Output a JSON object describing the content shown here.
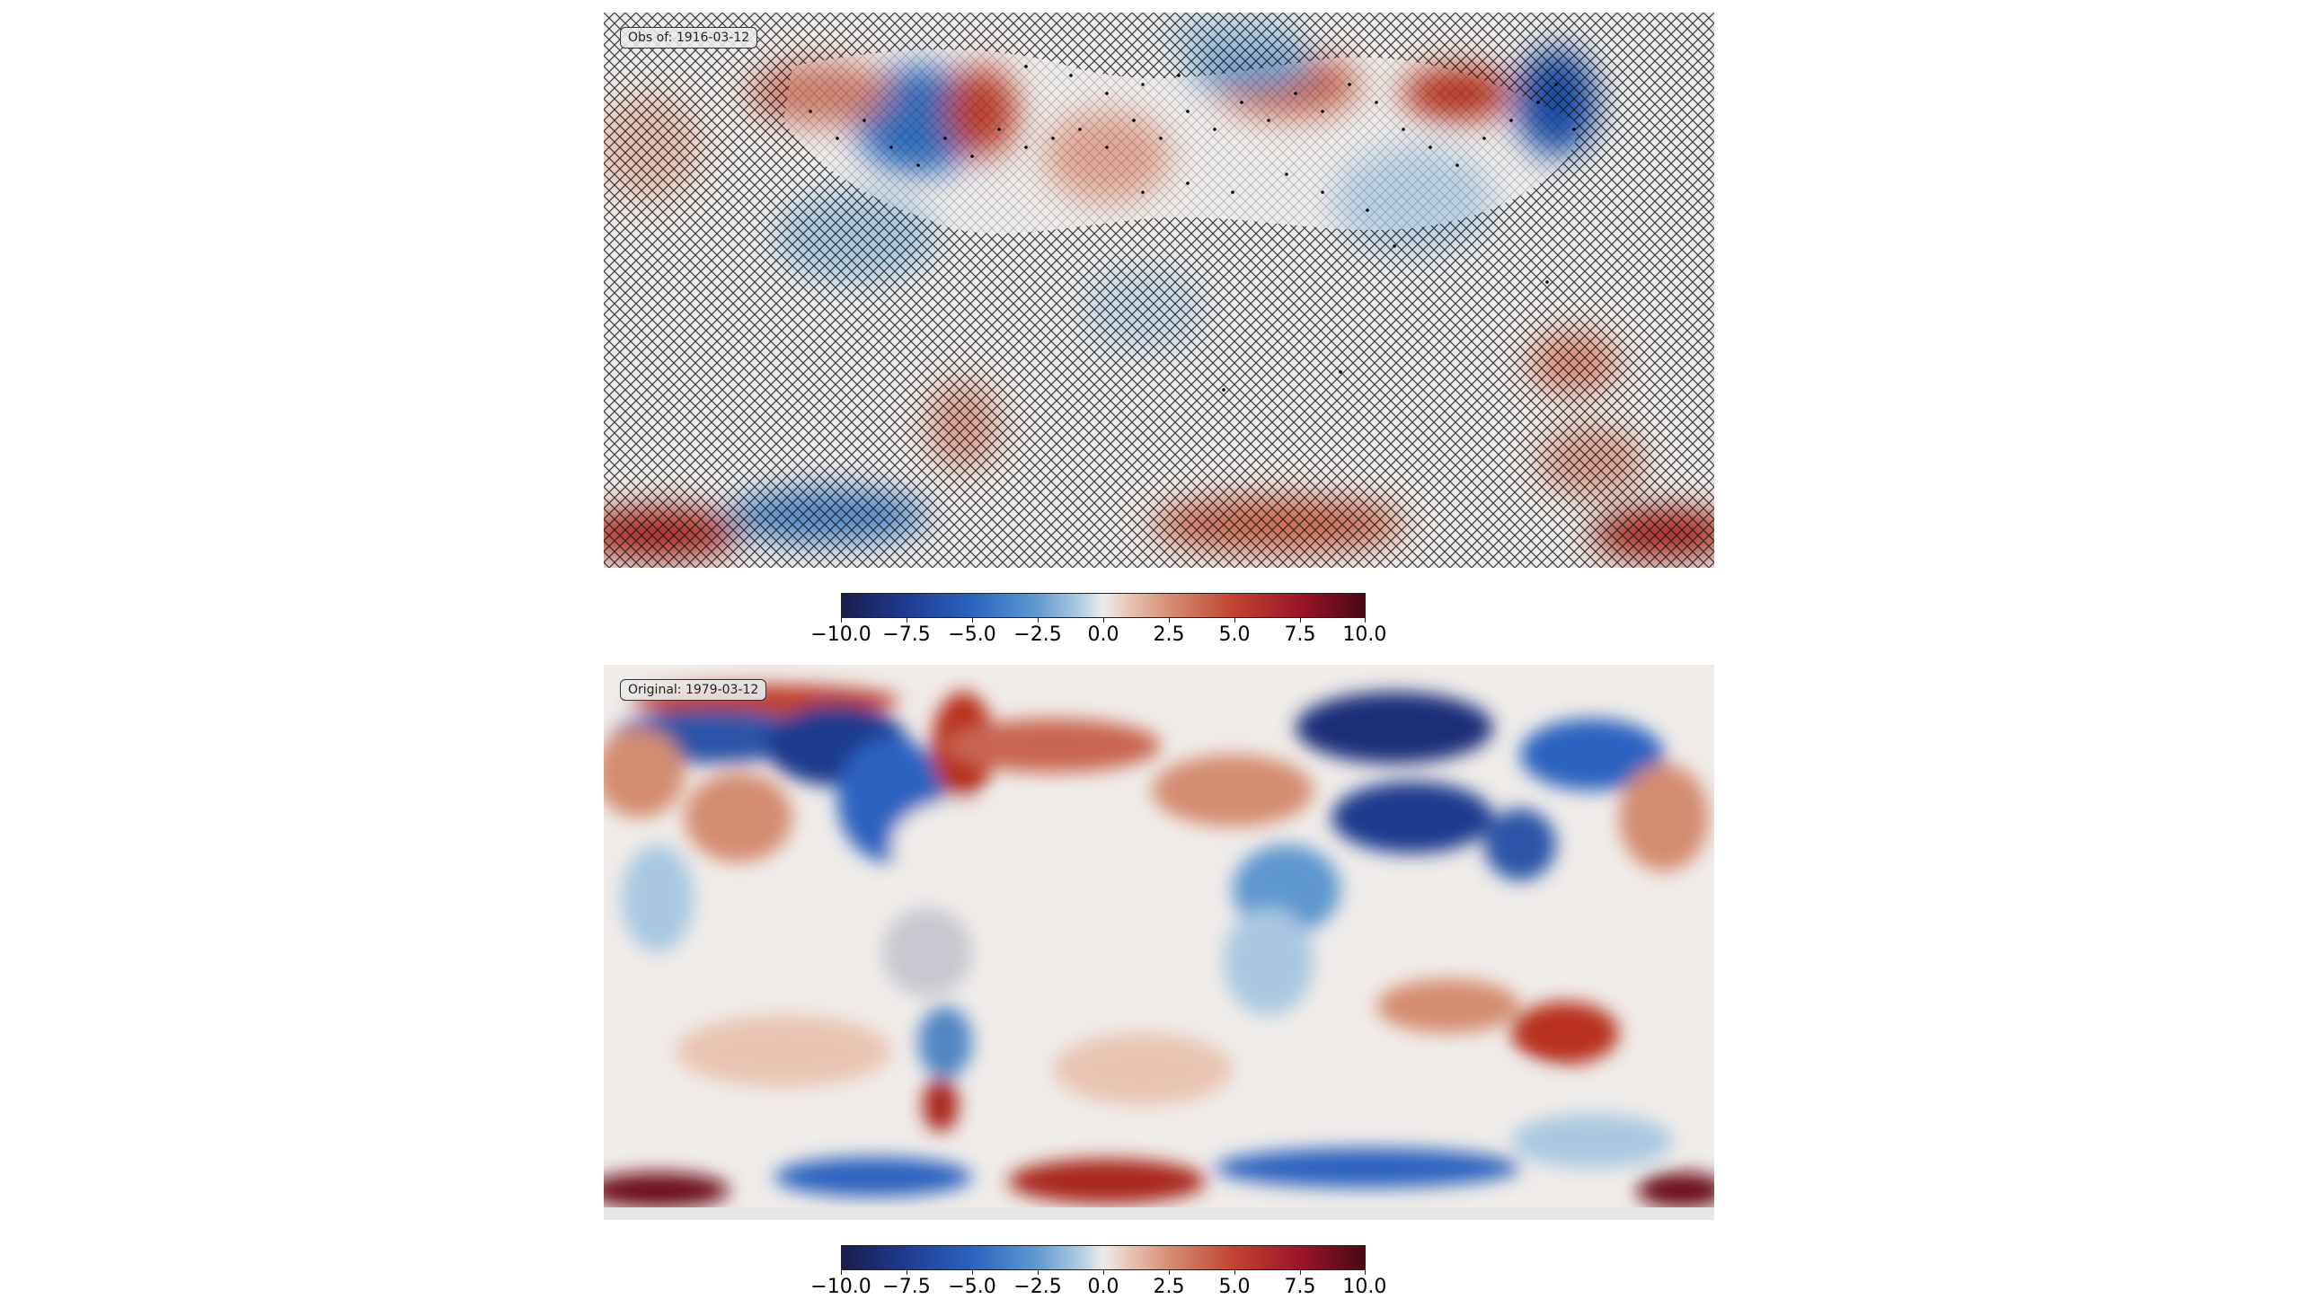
{
  "maps": [
    {
      "label": "Obs of: 1916-03-12",
      "variable_range": [
        -10,
        10
      ],
      "hatched_unobserved": true
    },
    {
      "label": "Original: 1979-03-12",
      "variable_range": [
        -10,
        10
      ],
      "hatched_unobserved": false
    }
  ],
  "colorbar": {
    "colormap": "RdBu_r",
    "ticks": [
      "−10.0",
      "−7.5",
      "−5.0",
      "−2.5",
      "0.0",
      "2.5",
      "5.0",
      "7.5",
      "10.0"
    ],
    "range": [
      -10,
      10
    ]
  },
  "colors": {
    "cold_extreme": "#1a1c4e",
    "cold": "#2a64c0",
    "neutral": "#ececec",
    "warm": "#c0432f",
    "warm_extreme": "#4a0714"
  }
}
